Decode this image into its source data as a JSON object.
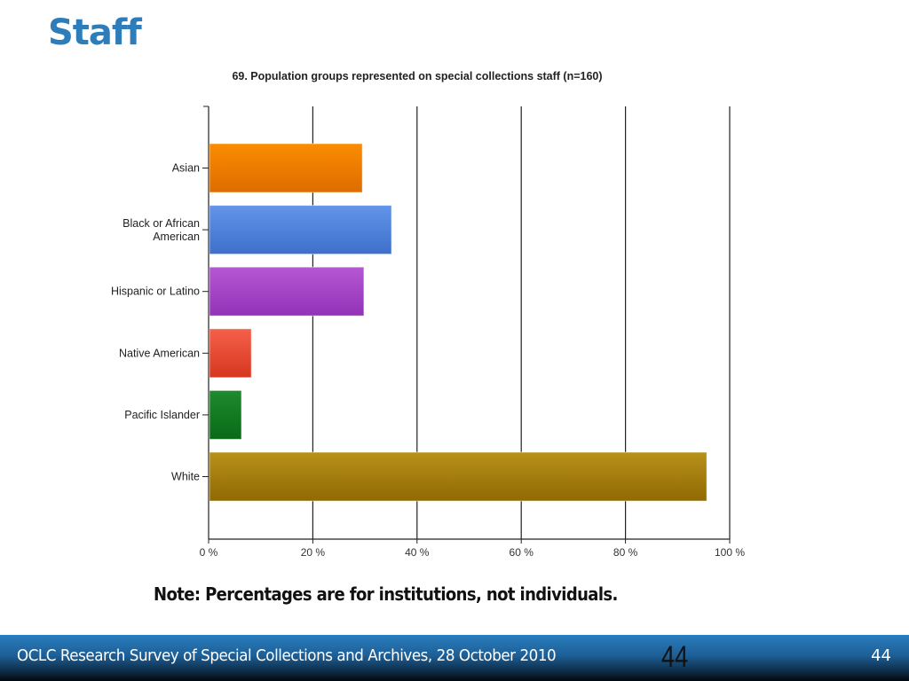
{
  "slide": {
    "title": "Staff",
    "note": "Note: Percentages are for institutions, not individuals."
  },
  "footer": {
    "text": "OCLC Research Survey of Special Collections and Archives, 28 October 2010",
    "big_number": "44",
    "page_number": "44"
  },
  "chart_data": {
    "type": "bar",
    "orientation": "horizontal",
    "title": "69. Population groups represented on special collections staff (n=160)",
    "categories": [
      [
        "Asian"
      ],
      [
        "Black or African",
        "American"
      ],
      [
        "Hispanic or Latino"
      ],
      [
        "Native American"
      ],
      [
        "Pacific Islander"
      ],
      [
        "White"
      ]
    ],
    "values": [
      29.5,
      35.1,
      29.8,
      8.2,
      6.3,
      95.6
    ],
    "colors": [
      [
        "#fb8c00",
        "#dd6d00"
      ],
      [
        "#6295e8",
        "#3e6fcb"
      ],
      [
        "#b657d4",
        "#9233b8"
      ],
      [
        "#f4604a",
        "#d6371f"
      ],
      [
        "#1f8a2e",
        "#0a6a16"
      ],
      [
        "#b8901a",
        "#8f6a04"
      ]
    ],
    "xlim": [
      0,
      100
    ],
    "xticks": [
      0,
      20,
      40,
      60,
      80,
      100
    ],
    "xtick_labels": [
      "0 %",
      "20 %",
      "40 %",
      "60 %",
      "80 %",
      "100 %"
    ],
    "grid": true,
    "xlabel": "",
    "ylabel": ""
  }
}
